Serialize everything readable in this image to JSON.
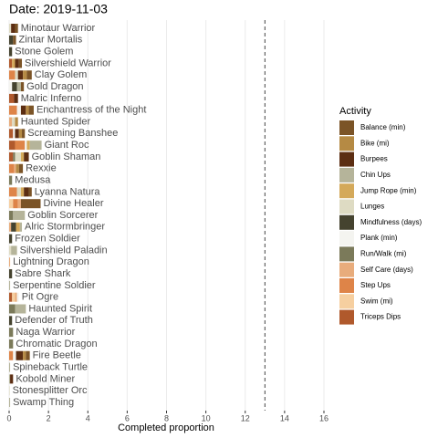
{
  "chart_data": {
    "type": "stacked_bar_horizontal",
    "title": "Date: 2019-11-03",
    "x_label": "Completed proportion",
    "legend_title": "Activity",
    "categories": [
      "Minotaur Warrior",
      "Zintar Mortalis",
      "Stone Golem",
      "Silvershield Warrior",
      "Clay Golem",
      "Gold Dragon",
      "Malric Inferno",
      "Enchantress of the Night",
      "Haunted Spider",
      "Screaming Banshee",
      "Giant Roc",
      "Goblin Shaman",
      "Rexxie",
      "Medusa",
      "Lyanna Natura",
      "Divine Healer",
      "Goblin Sorcerer",
      "Alric Stormbringer",
      "Frozen Soldier",
      "Silvershield Paladin",
      "Lightning Dragon",
      "Sabre Shark",
      "Serpentine Soldier",
      "Pit Ogre",
      "Haunted Spirit",
      "Defender of Truth",
      "Naga Warrior",
      "Chromatic Dragon",
      "Fire Beetle",
      "Spineback Turtle",
      "Kobold Miner",
      "Stonesplitter Orc",
      "Swamp Thing"
    ],
    "series": [
      {
        "name": "Balance (min)",
        "color": "#7b5427",
        "values": [
          0.15,
          0.15,
          0,
          0.15,
          0.25,
          0.15,
          0,
          0.25,
          0,
          0.15,
          0,
          0,
          0.2,
          0,
          0.15,
          1.0,
          0,
          0,
          0,
          0,
          0,
          0,
          0,
          0,
          0,
          0,
          0,
          0,
          0.2,
          0,
          0,
          0,
          0
        ]
      },
      {
        "name": "Bike (mi)",
        "color": "#b58a44",
        "values": [
          0,
          0,
          0,
          0,
          0.2,
          0,
          0,
          0.15,
          0.15,
          0.15,
          0,
          0,
          0.15,
          0,
          0,
          0,
          0,
          0,
          0,
          0,
          0,
          0,
          0,
          0,
          0,
          0,
          0,
          0,
          0.15,
          0,
          0,
          0,
          0
        ]
      },
      {
        "name": "Burpees",
        "color": "#5c2e12",
        "values": [
          0.2,
          0,
          0,
          0.2,
          0.25,
          0,
          0.2,
          0.25,
          0,
          0.2,
          0,
          0.25,
          0,
          0,
          0.25,
          0,
          0,
          0,
          0,
          0,
          0,
          0,
          0,
          0,
          0,
          0,
          0,
          0,
          0.35,
          0,
          0.15,
          0,
          0
        ]
      },
      {
        "name": "Chin Ups",
        "color": "#b5b49a",
        "values": [
          0,
          0,
          0,
          0,
          0,
          0.2,
          0,
          0,
          0,
          0,
          0.6,
          0,
          0,
          0,
          0,
          0,
          0.6,
          0.1,
          0,
          0.3,
          0,
          0,
          0.05,
          0,
          0.55,
          0,
          0,
          0,
          0,
          0.05,
          0.05,
          0,
          0.05
        ]
      },
      {
        "name": "Jump Rope (min)",
        "color": "#d4a95a",
        "values": [
          0,
          0,
          0,
          0.15,
          0,
          0,
          0,
          0,
          0,
          0,
          0.15,
          0.15,
          0,
          0,
          0.15,
          0,
          0,
          0.2,
          0,
          0,
          0,
          0,
          0,
          0,
          0,
          0,
          0,
          0,
          0,
          0,
          0,
          0,
          0
        ]
      },
      {
        "name": "Lunges",
        "color": "#dedbc3",
        "values": [
          0.1,
          0,
          0,
          0,
          0.15,
          0,
          0,
          0,
          0.15,
          0,
          0,
          0.3,
          0,
          0,
          0.2,
          0,
          0,
          0,
          0,
          0.1,
          0,
          0,
          0,
          0,
          0,
          0,
          0,
          0,
          0,
          0,
          0,
          0.03,
          0
        ]
      },
      {
        "name": "Mindfulness (days)",
        "color": "#45432f",
        "values": [
          0,
          0.2,
          0.15,
          0,
          0,
          0.25,
          0,
          0,
          0,
          0,
          0,
          0,
          0,
          0,
          0,
          0,
          0,
          0.25,
          0.15,
          0,
          0,
          0.15,
          0,
          0,
          0,
          0.15,
          0,
          0,
          0,
          0,
          0,
          0,
          0
        ]
      },
      {
        "name": "Plank (min)",
        "color": "#f4f4f0",
        "values": [
          0,
          0,
          0,
          0,
          0,
          0.15,
          0,
          0.2,
          0,
          0.1,
          0.1,
          0,
          0,
          0,
          0,
          0,
          0,
          0,
          0,
          0,
          0,
          0,
          0,
          0.1,
          0,
          0,
          0,
          0,
          0.15,
          0,
          0,
          0,
          0
        ]
      },
      {
        "name": "Run/Walk (mi)",
        "color": "#7b7a5a",
        "values": [
          0,
          0,
          0,
          0,
          0,
          0,
          0,
          0,
          0,
          0,
          0,
          0.1,
          0,
          0.15,
          0,
          0,
          0.2,
          0,
          0,
          0,
          0,
          0,
          0,
          0,
          0.3,
          0,
          0.2,
          0.2,
          0,
          0,
          0,
          0,
          0
        ]
      },
      {
        "name": "Self Care (days)",
        "color": "#e8ac7c",
        "values": [
          0,
          0,
          0,
          0,
          0,
          0,
          0,
          0,
          0.15,
          0,
          0,
          0,
          0.1,
          0,
          0,
          0.15,
          0,
          0.1,
          0,
          0,
          0.05,
          0,
          0,
          0.1,
          0,
          0,
          0,
          0,
          0,
          0,
          0,
          0,
          0
        ]
      },
      {
        "name": "Step Ups",
        "color": "#de8448",
        "values": [
          0,
          0,
          0,
          0,
          0.3,
          0,
          0,
          0.4,
          0,
          0,
          0.5,
          0,
          0.25,
          0,
          0.4,
          0.25,
          0,
          0,
          0,
          0,
          0,
          0,
          0,
          0,
          0,
          0,
          0,
          0,
          0.2,
          0,
          0,
          0,
          0
        ]
      },
      {
        "name": "Swim (mi)",
        "color": "#f6cfa0",
        "values": [
          0,
          0,
          0,
          0,
          0,
          0,
          0,
          0,
          0,
          0,
          0,
          0,
          0,
          0,
          0,
          0.2,
          0,
          0,
          0,
          0,
          0,
          0,
          0,
          0.15,
          0,
          0,
          0,
          0,
          0,
          0,
          0,
          0,
          0
        ]
      },
      {
        "name": "Triceps Dips",
        "color": "#b0592c",
        "values": [
          0,
          0,
          0,
          0.15,
          0,
          0,
          0.25,
          0,
          0,
          0.2,
          0.3,
          0.2,
          0,
          0,
          0,
          0,
          0,
          0,
          0,
          0,
          0,
          0,
          0,
          0.15,
          0,
          0,
          0,
          0,
          0,
          0,
          0,
          0,
          0
        ]
      }
    ],
    "reference_line": 13,
    "xlim": [
      0,
      16
    ],
    "xticks": [
      0,
      2,
      4,
      6,
      8,
      10,
      12,
      14,
      16
    ],
    "grid": true
  }
}
